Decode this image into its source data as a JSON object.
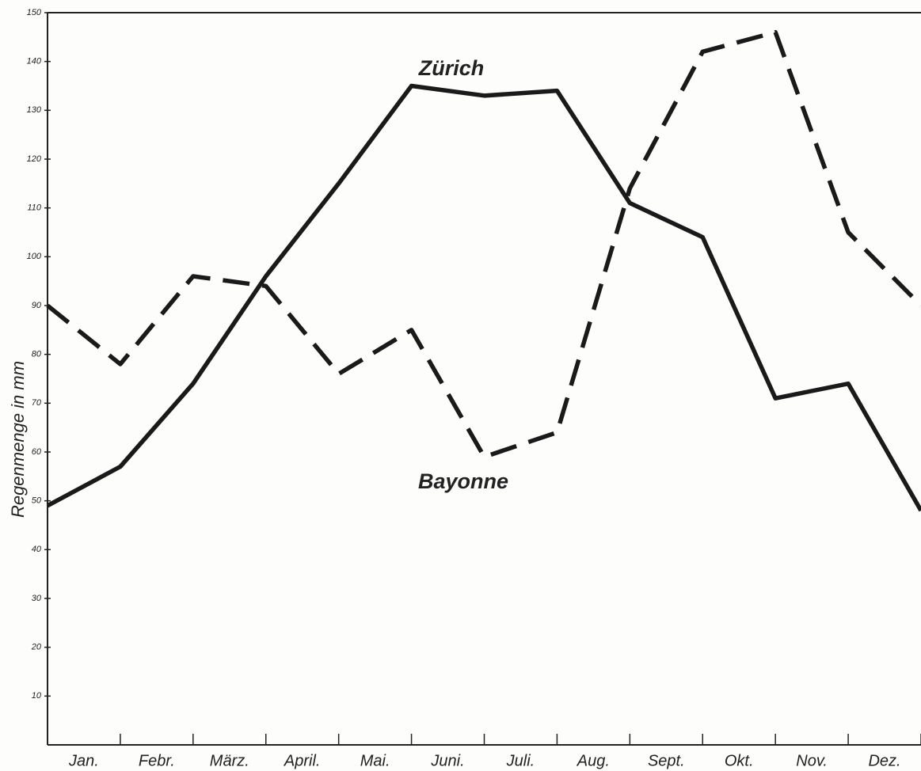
{
  "chart_data": {
    "type": "line",
    "y_label": "Regenmenge in mm",
    "annotations": [
      "Zürich",
      "Bayonne"
    ],
    "x": [
      0,
      1,
      2,
      3,
      4,
      5,
      6,
      7,
      8,
      9,
      10,
      11,
      12
    ],
    "xlim": [
      0,
      12
    ],
    "xticks": [
      {
        "value": 0.5,
        "label": "Jan."
      },
      {
        "value": 1.5,
        "label": "Febr."
      },
      {
        "value": 2.5,
        "label": "März."
      },
      {
        "value": 3.5,
        "label": "April."
      },
      {
        "value": 4.5,
        "label": "Mai."
      },
      {
        "value": 5.5,
        "label": "Juni."
      },
      {
        "value": 6.5,
        "label": "Juli."
      },
      {
        "value": 7.5,
        "label": "Aug."
      },
      {
        "value": 8.5,
        "label": "Sept."
      },
      {
        "value": 9.5,
        "label": "Okt."
      },
      {
        "value": 10.5,
        "label": "Nov."
      },
      {
        "value": 11.5,
        "label": "Dez."
      }
    ],
    "ylim": [
      0,
      150
    ],
    "yticks": [
      10,
      20,
      30,
      40,
      50,
      60,
      70,
      80,
      90,
      100,
      110,
      120,
      130,
      140,
      150
    ],
    "series": [
      {
        "name": "Zürich",
        "color": "#1a1a1a",
        "dashed": false,
        "values": [
          49,
          57,
          74,
          96,
          115,
          135,
          133,
          134,
          111,
          104,
          71,
          74,
          48
        ]
      },
      {
        "name": "Bayonne",
        "color": "#1a1a1a",
        "dashed": true,
        "values": [
          90,
          78,
          96,
          94,
          76,
          85,
          59,
          64,
          114,
          142,
          146,
          105,
          90
        ]
      }
    ]
  }
}
